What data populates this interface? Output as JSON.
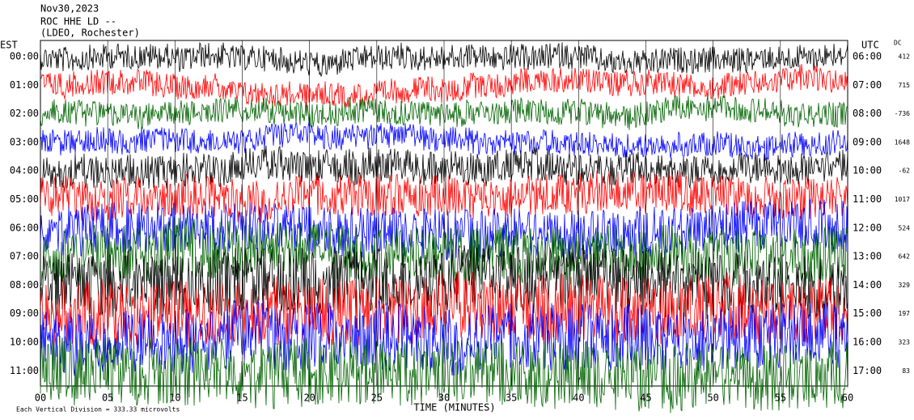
{
  "chart_data": {
    "type": "helicorder",
    "title_lines": [
      "Nov30,2023",
      "ROC HHE LD --",
      "(LDEO, Rochester)"
    ],
    "left_label": "EST",
    "right_label": "UTC",
    "dc_label": "DC",
    "x_label": "TIME (MINUTES)",
    "footnote": "Each Vertical Division = 333.33 microvolts",
    "xlim": [
      0,
      60
    ],
    "xticks": [
      {
        "value": 0,
        "label": "00"
      },
      {
        "value": 5,
        "label": "05"
      },
      10,
      15,
      20,
      25,
      30,
      35,
      40,
      45,
      50,
      55,
      60
    ],
    "rows": [
      {
        "est": "00:00",
        "utc": "06:00",
        "dc": "412",
        "color": "#000000",
        "amplitude": 150
      },
      {
        "est": "01:00",
        "utc": "07:00",
        "dc": "715",
        "color": "#ff0000",
        "amplitude": 150
      },
      {
        "est": "02:00",
        "utc": "08:00",
        "dc": "-736",
        "color": "#006400",
        "amplitude": 150
      },
      {
        "est": "03:00",
        "utc": "09:00",
        "dc": "1648",
        "color": "#0000ff",
        "amplitude": 150
      },
      {
        "est": "04:00",
        "utc": "10:00",
        "dc": "-62",
        "color": "#000000",
        "amplitude": 200
      },
      {
        "est": "05:00",
        "utc": "11:00",
        "dc": "1017",
        "color": "#ff0000",
        "amplitude": 250
      },
      {
        "est": "06:00",
        "utc": "12:00",
        "dc": "524",
        "color": "#0000ff",
        "amplitude": 300
      },
      {
        "est": "07:00",
        "utc": "13:00",
        "dc": "642",
        "color": "#006400",
        "amplitude": 350
      },
      {
        "est": "08:00",
        "utc": "14:00",
        "dc": "329",
        "color": "#000000",
        "amplitude": 400
      },
      {
        "est": "09:00",
        "utc": "15:00",
        "dc": "197",
        "color": "#ff0000",
        "amplitude": 400
      },
      {
        "est": "10:00",
        "utc": "16:00",
        "dc": "323",
        "color": "#0000ff",
        "amplitude": 400
      },
      {
        "est": "11:00",
        "utc": "17:00",
        "dc": "83",
        "color": "#006400",
        "amplitude": 400
      }
    ]
  }
}
